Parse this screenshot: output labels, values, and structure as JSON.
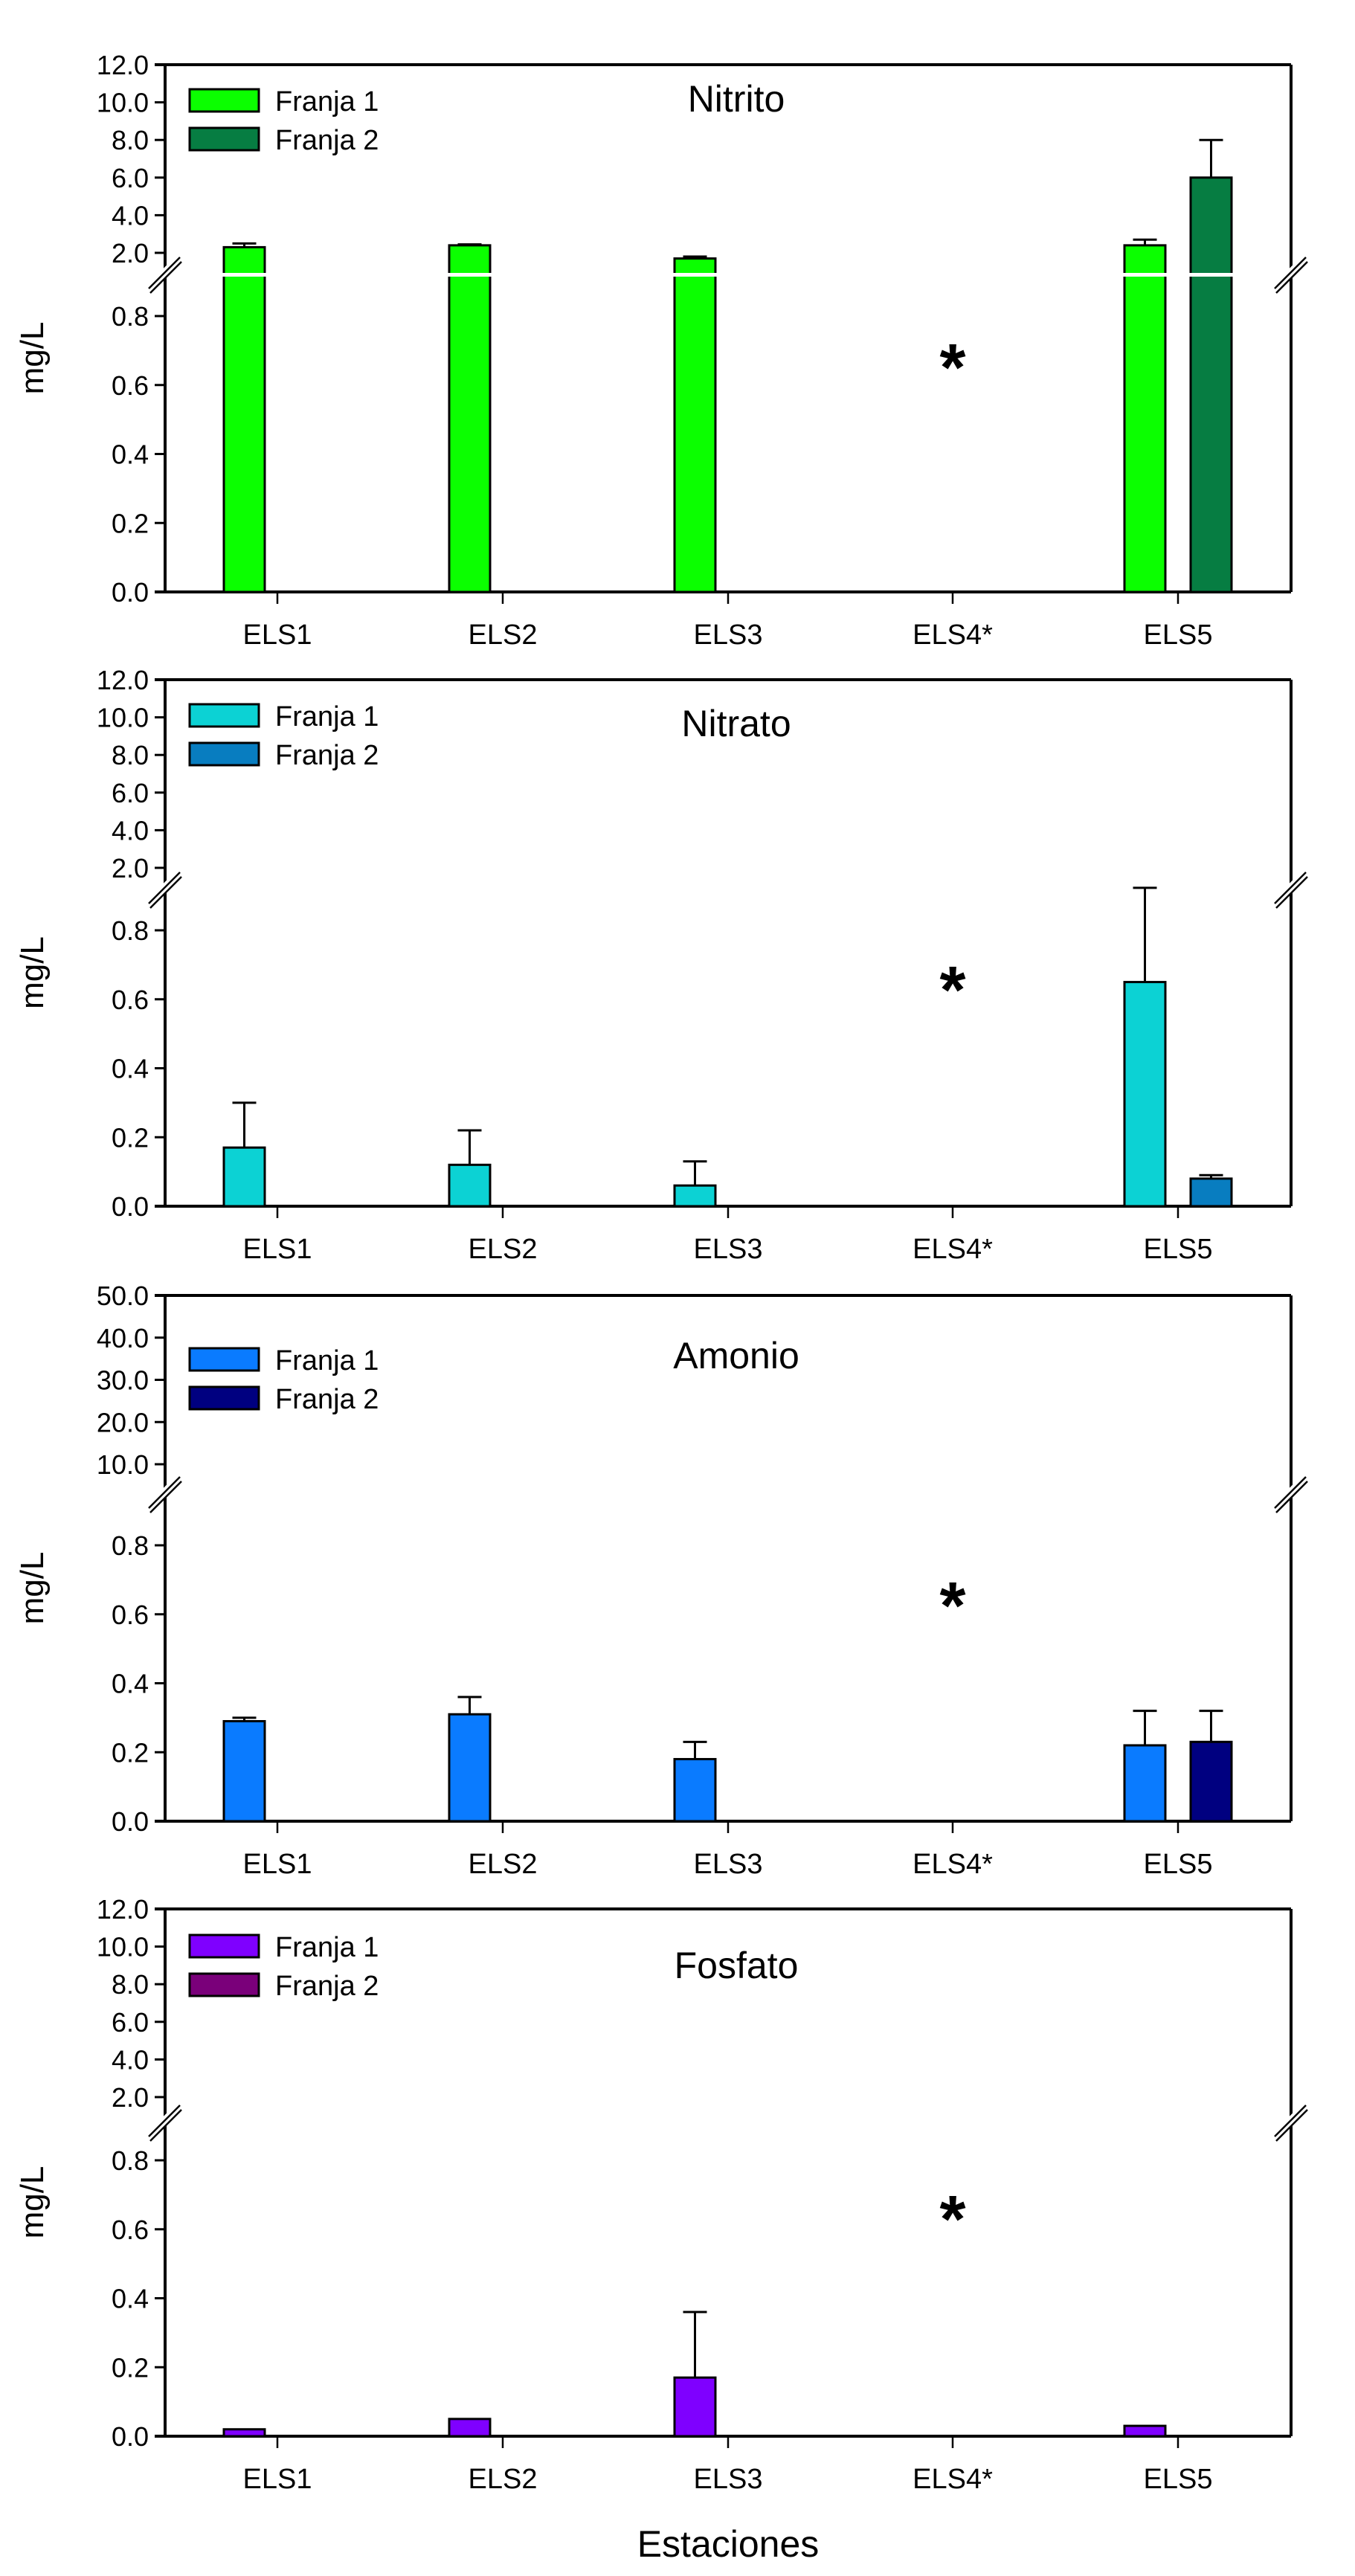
{
  "chart_data": [
    {
      "type": "bar",
      "title": "Nitrito",
      "xlabel": "",
      "ylabel": "mg/L",
      "categories": [
        "ELS1",
        "ELS2",
        "ELS3",
        "ELS4*",
        "ELS5"
      ],
      "y_break": {
        "lower_range": [
          0,
          0.8
        ],
        "upper_range": [
          2.0,
          12.0
        ]
      },
      "lower_ticks": [
        "0.0",
        "0.2",
        "0.4",
        "0.6",
        "0.8"
      ],
      "upper_ticks": [
        "2.0",
        "4.0",
        "6.0",
        "8.0",
        "10.0",
        "12.0"
      ],
      "legend": {
        "position": "top-left"
      },
      "annotation": {
        "text": "*",
        "category": "ELS4*"
      },
      "series": [
        {
          "name": "Franja 1",
          "color": "#0bff00",
          "values": [
            2.3,
            2.4,
            1.7,
            null,
            2.4
          ],
          "errors": [
            0.2,
            0.05,
            0.1,
            null,
            0.3
          ]
        },
        {
          "name": "Franja 2",
          "color": "#067d42",
          "values": [
            null,
            null,
            null,
            null,
            6.0
          ],
          "errors": [
            null,
            null,
            null,
            null,
            2.0
          ]
        }
      ]
    },
    {
      "type": "bar",
      "title": "Nitrato",
      "xlabel": "",
      "ylabel": "mg/L",
      "categories": [
        "ELS1",
        "ELS2",
        "ELS3",
        "ELS4*",
        "ELS5"
      ],
      "y_break": {
        "lower_range": [
          0,
          0.8
        ],
        "upper_range": [
          2.0,
          12.0
        ]
      },
      "lower_ticks": [
        "0.0",
        "0.2",
        "0.4",
        "0.6",
        "0.8"
      ],
      "upper_ticks": [
        "2.0",
        "4.0",
        "6.0",
        "8.0",
        "10.0",
        "12.0"
      ],
      "legend": {
        "position": "top-left"
      },
      "annotation": {
        "text": "*",
        "category": "ELS4*"
      },
      "series": [
        {
          "name": "Franja 1",
          "color": "#0cd2d4",
          "values": [
            0.17,
            0.12,
            0.06,
            null,
            0.65
          ],
          "errors": [
            0.13,
            0.1,
            0.07,
            null,
            0.29
          ]
        },
        {
          "name": "Franja 2",
          "color": "#087dc0",
          "values": [
            null,
            null,
            null,
            null,
            0.08
          ],
          "errors": [
            null,
            null,
            null,
            null,
            0.01
          ]
        }
      ]
    },
    {
      "type": "bar",
      "title": "Amonio",
      "xlabel": "",
      "ylabel": "mg/L",
      "categories": [
        "ELS1",
        "ELS2",
        "ELS3",
        "ELS4*",
        "ELS5"
      ],
      "y_break": {
        "lower_range": [
          0,
          0.8
        ],
        "upper_range": [
          10.0,
          50.0
        ]
      },
      "lower_ticks": [
        "0.0",
        "0.2",
        "0.4",
        "0.6",
        "0.8"
      ],
      "upper_ticks": [
        "10.0",
        "20.0",
        "30.0",
        "40.0",
        "50.0"
      ],
      "legend": {
        "position": "top-left"
      },
      "annotation": {
        "text": "*",
        "category": "ELS4*"
      },
      "series": [
        {
          "name": "Franja 1",
          "color": "#0a7bff",
          "values": [
            0.29,
            0.31,
            0.18,
            null,
            0.22
          ],
          "errors": [
            0.01,
            0.05,
            0.05,
            null,
            0.1
          ]
        },
        {
          "name": "Franja 2",
          "color": "#000080",
          "values": [
            null,
            null,
            null,
            null,
            0.23
          ],
          "errors": [
            null,
            null,
            null,
            null,
            0.09
          ]
        }
      ]
    },
    {
      "type": "bar",
      "title": "Fosfato",
      "xlabel": "Estaciones",
      "ylabel": "mg/L",
      "categories": [
        "ELS1",
        "ELS2",
        "ELS3",
        "ELS4*",
        "ELS5"
      ],
      "y_break": {
        "lower_range": [
          0,
          0.8
        ],
        "upper_range": [
          2.0,
          12.0
        ]
      },
      "lower_ticks": [
        "0.0",
        "0.2",
        "0.4",
        "0.6",
        "0.8"
      ],
      "upper_ticks": [
        "2.0",
        "4.0",
        "6.0",
        "8.0",
        "10.0",
        "12.0"
      ],
      "legend": {
        "position": "top-left"
      },
      "annotation": {
        "text": "*",
        "category": "ELS4*"
      },
      "series": [
        {
          "name": "Franja 1",
          "color": "#7f00ff",
          "values": [
            0.02,
            0.05,
            0.17,
            null,
            0.03
          ],
          "errors": [
            null,
            null,
            0.19,
            null,
            null
          ]
        },
        {
          "name": "Franja 2",
          "color": "#7a007a",
          "values": [
            null,
            null,
            null,
            null,
            null
          ],
          "errors": [
            null,
            null,
            null,
            null,
            null
          ]
        }
      ]
    }
  ]
}
